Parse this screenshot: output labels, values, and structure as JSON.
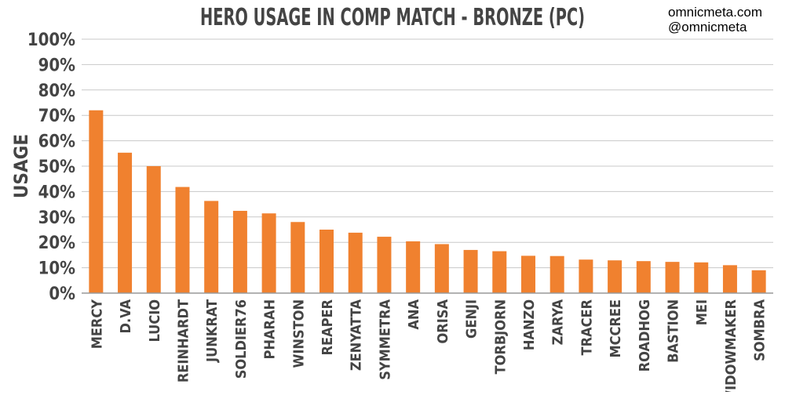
{
  "credits": {
    "line1": "omnicmeta.com",
    "line2": "@omnicmeta"
  },
  "colors": {
    "bar": "#f0812f",
    "grid": "#c8c8c8",
    "axis": "#999999",
    "text": "#444444"
  },
  "chart_data": {
    "type": "bar",
    "title": "HERO USAGE IN COMP MATCH - BRONZE (PC)",
    "xlabel": "",
    "ylabel": "USAGE",
    "ylim": [
      0,
      100
    ],
    "yticks": [
      0,
      10,
      20,
      30,
      40,
      50,
      60,
      70,
      80,
      90,
      100
    ],
    "ytick_labels": [
      "0%",
      "10%",
      "20%",
      "30%",
      "40%",
      "50%",
      "60%",
      "70%",
      "80%",
      "90%",
      "100%"
    ],
    "grid": true,
    "categories": [
      "MERCY",
      "D.VA",
      "LUCIO",
      "REINHARDT",
      "JUNKRAT",
      "SOLDIER76",
      "PHARAH",
      "WINSTON",
      "REAPER",
      "ZENYATTA",
      "SYMMETRA",
      "ANA",
      "ORISA",
      "GENJI",
      "TORBJORN",
      "HANZO",
      "ZARYA",
      "TRACER",
      "MCCREE",
      "ROADHOG",
      "BASTION",
      "MEI",
      "WIDOWMAKER",
      "SOMBRA"
    ],
    "values": [
      72,
      55.3,
      50,
      41.8,
      36.3,
      32.4,
      31.4,
      28,
      25,
      23.8,
      22.2,
      20.4,
      19.3,
      17,
      16.5,
      14.7,
      14.6,
      13.2,
      12.9,
      12.6,
      12.3,
      12.1,
      11,
      9
    ]
  }
}
